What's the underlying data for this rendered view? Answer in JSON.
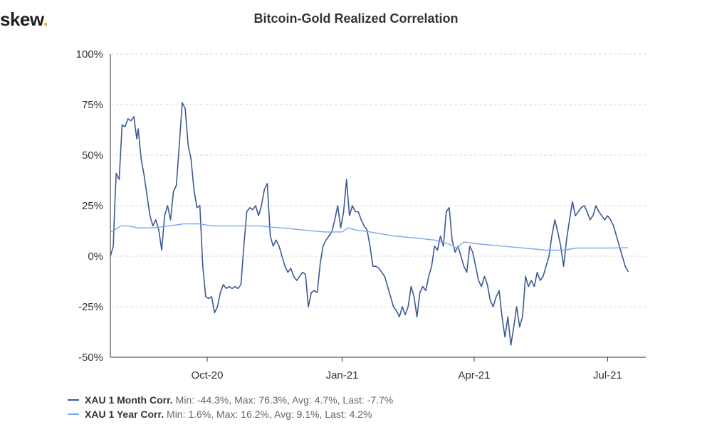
{
  "brand": {
    "name": "skew",
    "dot": "."
  },
  "chart_data": {
    "type": "line",
    "title": "Bitcoin-Gold Realized Correlation",
    "xlabel": "",
    "ylabel": "",
    "ylim": [
      -50,
      100
    ],
    "y_ticks": [
      "100%",
      "75%",
      "50%",
      "25%",
      "0%",
      "-25%",
      "-50%"
    ],
    "y_tick_values": [
      100,
      75,
      50,
      25,
      0,
      -25,
      -50
    ],
    "x_range": [
      "2020-07-27",
      "2021-07-27"
    ],
    "x_ticks": [
      {
        "label": "Oct-20",
        "date": "2020-10-01"
      },
      {
        "label": "Jan-21",
        "date": "2021-01-01"
      },
      {
        "label": "Apr-21",
        "date": "2021-04-01"
      },
      {
        "label": "Jul-21",
        "date": "2021-07-01"
      }
    ],
    "grid": true,
    "legend_position": "bottom-left",
    "series": [
      {
        "name": "XAU 1 Month Corr.",
        "stats": "Min: -44.3%, Max: 76.3%, Avg: 4.7%, Last: -7.7%",
        "color": "#3b5a94",
        "points": [
          [
            "2020-07-27",
            0
          ],
          [
            "2020-07-29",
            5
          ],
          [
            "2020-07-30",
            25
          ],
          [
            "2020-07-31",
            41
          ],
          [
            "2020-08-02",
            38
          ],
          [
            "2020-08-04",
            65
          ],
          [
            "2020-08-06",
            64
          ],
          [
            "2020-08-08",
            68
          ],
          [
            "2020-08-10",
            67
          ],
          [
            "2020-08-12",
            69
          ],
          [
            "2020-08-14",
            58
          ],
          [
            "2020-08-15",
            63
          ],
          [
            "2020-08-17",
            48
          ],
          [
            "2020-08-19",
            40
          ],
          [
            "2020-08-21",
            30
          ],
          [
            "2020-08-23",
            20
          ],
          [
            "2020-08-25",
            15
          ],
          [
            "2020-08-27",
            18
          ],
          [
            "2020-08-29",
            13
          ],
          [
            "2020-08-31",
            3
          ],
          [
            "2020-09-02",
            20
          ],
          [
            "2020-09-04",
            25
          ],
          [
            "2020-09-06",
            18
          ],
          [
            "2020-09-08",
            32
          ],
          [
            "2020-09-10",
            35
          ],
          [
            "2020-09-12",
            55
          ],
          [
            "2020-09-14",
            76
          ],
          [
            "2020-09-16",
            73
          ],
          [
            "2020-09-18",
            55
          ],
          [
            "2020-09-20",
            48
          ],
          [
            "2020-09-22",
            33
          ],
          [
            "2020-09-24",
            24
          ],
          [
            "2020-09-26",
            25
          ],
          [
            "2020-09-28",
            -5
          ],
          [
            "2020-09-30",
            -20
          ],
          [
            "2020-10-02",
            -21
          ],
          [
            "2020-10-04",
            -20
          ],
          [
            "2020-10-06",
            -28
          ],
          [
            "2020-10-08",
            -25
          ],
          [
            "2020-10-10",
            -18
          ],
          [
            "2020-10-12",
            -14
          ],
          [
            "2020-10-14",
            -16
          ],
          [
            "2020-10-16",
            -15
          ],
          [
            "2020-10-18",
            -16
          ],
          [
            "2020-10-20",
            -15
          ],
          [
            "2020-10-22",
            -16
          ],
          [
            "2020-10-24",
            -14
          ],
          [
            "2020-10-26",
            5
          ],
          [
            "2020-10-28",
            22
          ],
          [
            "2020-10-30",
            24
          ],
          [
            "2020-11-01",
            23
          ],
          [
            "2020-11-03",
            25
          ],
          [
            "2020-11-05",
            20
          ],
          [
            "2020-11-07",
            25
          ],
          [
            "2020-11-09",
            33
          ],
          [
            "2020-11-11",
            36
          ],
          [
            "2020-11-13",
            10
          ],
          [
            "2020-11-15",
            5
          ],
          [
            "2020-11-17",
            8
          ],
          [
            "2020-11-19",
            5
          ],
          [
            "2020-11-21",
            0
          ],
          [
            "2020-11-23",
            -5
          ],
          [
            "2020-11-25",
            -8
          ],
          [
            "2020-11-27",
            -6
          ],
          [
            "2020-11-29",
            -10
          ],
          [
            "2020-12-01",
            -12
          ],
          [
            "2020-12-03",
            -10
          ],
          [
            "2020-12-05",
            -8
          ],
          [
            "2020-12-07",
            -9
          ],
          [
            "2020-12-09",
            -25
          ],
          [
            "2020-12-11",
            -18
          ],
          [
            "2020-12-13",
            -17
          ],
          [
            "2020-12-15",
            -18
          ],
          [
            "2020-12-17",
            -4
          ],
          [
            "2020-12-19",
            5
          ],
          [
            "2020-12-21",
            8
          ],
          [
            "2020-12-23",
            10
          ],
          [
            "2020-12-25",
            12
          ],
          [
            "2020-12-27",
            18
          ],
          [
            "2020-12-29",
            25
          ],
          [
            "2020-12-31",
            14
          ],
          [
            "2021-01-02",
            22
          ],
          [
            "2021-01-04",
            38
          ],
          [
            "2021-01-06",
            20
          ],
          [
            "2021-01-08",
            25
          ],
          [
            "2021-01-10",
            22
          ],
          [
            "2021-01-12",
            22
          ],
          [
            "2021-01-14",
            18
          ],
          [
            "2021-01-16",
            15
          ],
          [
            "2021-01-18",
            13
          ],
          [
            "2021-01-20",
            5
          ],
          [
            "2021-01-22",
            -5
          ],
          [
            "2021-01-24",
            -5
          ],
          [
            "2021-01-26",
            -6
          ],
          [
            "2021-01-28",
            -8
          ],
          [
            "2021-01-30",
            -10
          ],
          [
            "2021-02-01",
            -15
          ],
          [
            "2021-02-03",
            -20
          ],
          [
            "2021-02-05",
            -25
          ],
          [
            "2021-02-07",
            -27
          ],
          [
            "2021-02-09",
            -30
          ],
          [
            "2021-02-11",
            -25
          ],
          [
            "2021-02-13",
            -29
          ],
          [
            "2021-02-15",
            -25
          ],
          [
            "2021-02-17",
            -15
          ],
          [
            "2021-02-19",
            -20
          ],
          [
            "2021-02-21",
            -30
          ],
          [
            "2021-02-23",
            -18
          ],
          [
            "2021-02-25",
            -15
          ],
          [
            "2021-02-27",
            -17
          ],
          [
            "2021-03-01",
            -10
          ],
          [
            "2021-03-03",
            -5
          ],
          [
            "2021-03-05",
            5
          ],
          [
            "2021-03-07",
            3
          ],
          [
            "2021-03-09",
            10
          ],
          [
            "2021-03-11",
            5
          ],
          [
            "2021-03-13",
            22
          ],
          [
            "2021-03-15",
            24
          ],
          [
            "2021-03-17",
            8
          ],
          [
            "2021-03-19",
            2
          ],
          [
            "2021-03-21",
            5
          ],
          [
            "2021-03-23",
            0
          ],
          [
            "2021-03-25",
            -5
          ],
          [
            "2021-03-27",
            -8
          ],
          [
            "2021-03-29",
            5
          ],
          [
            "2021-03-31",
            2
          ],
          [
            "2021-04-02",
            -5
          ],
          [
            "2021-04-04",
            -12
          ],
          [
            "2021-04-06",
            -15
          ],
          [
            "2021-04-08",
            -10
          ],
          [
            "2021-04-10",
            -14
          ],
          [
            "2021-04-12",
            -22
          ],
          [
            "2021-04-14",
            -25
          ],
          [
            "2021-04-16",
            -20
          ],
          [
            "2021-04-18",
            -17
          ],
          [
            "2021-04-20",
            -30
          ],
          [
            "2021-04-22",
            -40
          ],
          [
            "2021-04-24",
            -30
          ],
          [
            "2021-04-26",
            -44
          ],
          [
            "2021-04-28",
            -35
          ],
          [
            "2021-04-30",
            -25
          ],
          [
            "2021-05-02",
            -35
          ],
          [
            "2021-05-04",
            -30
          ],
          [
            "2021-05-06",
            -10
          ],
          [
            "2021-05-08",
            -15
          ],
          [
            "2021-05-10",
            -12
          ],
          [
            "2021-05-12",
            -15
          ],
          [
            "2021-05-14",
            -8
          ],
          [
            "2021-05-16",
            -12
          ],
          [
            "2021-05-18",
            -10
          ],
          [
            "2021-05-20",
            -5
          ],
          [
            "2021-05-22",
            0
          ],
          [
            "2021-05-24",
            10
          ],
          [
            "2021-05-26",
            18
          ],
          [
            "2021-05-28",
            12
          ],
          [
            "2021-05-30",
            5
          ],
          [
            "2021-06-01",
            -5
          ],
          [
            "2021-06-03",
            8
          ],
          [
            "2021-06-05",
            18
          ],
          [
            "2021-06-07",
            27
          ],
          [
            "2021-06-09",
            20
          ],
          [
            "2021-06-11",
            22
          ],
          [
            "2021-06-13",
            24
          ],
          [
            "2021-06-15",
            25
          ],
          [
            "2021-06-17",
            22
          ],
          [
            "2021-06-19",
            18
          ],
          [
            "2021-06-21",
            20
          ],
          [
            "2021-06-23",
            25
          ],
          [
            "2021-06-25",
            22
          ],
          [
            "2021-06-27",
            20
          ],
          [
            "2021-06-29",
            18
          ],
          [
            "2021-07-01",
            20
          ],
          [
            "2021-07-03",
            18
          ],
          [
            "2021-07-05",
            15
          ],
          [
            "2021-07-07",
            10
          ],
          [
            "2021-07-09",
            5
          ],
          [
            "2021-07-11",
            0
          ],
          [
            "2021-07-13",
            -5
          ],
          [
            "2021-07-15",
            -7.7
          ]
        ]
      },
      {
        "name": "XAU 1 Year Corr.",
        "stats": "Min: 1.6%, Max: 16.2%, Avg: 9.1%, Last: 4.2%",
        "color": "#7aa7f0",
        "points": [
          [
            "2020-07-27",
            12
          ],
          [
            "2020-07-30",
            13
          ],
          [
            "2020-08-03",
            15
          ],
          [
            "2020-08-08",
            15
          ],
          [
            "2020-08-15",
            14
          ],
          [
            "2020-08-25",
            14
          ],
          [
            "2020-09-05",
            15
          ],
          [
            "2020-09-15",
            16
          ],
          [
            "2020-09-25",
            16
          ],
          [
            "2020-10-05",
            15
          ],
          [
            "2020-10-20",
            15
          ],
          [
            "2020-11-05",
            15
          ],
          [
            "2020-11-20",
            14
          ],
          [
            "2020-12-05",
            13
          ],
          [
            "2020-12-20",
            12
          ],
          [
            "2021-01-01",
            12
          ],
          [
            "2021-01-05",
            14
          ],
          [
            "2021-01-10",
            13
          ],
          [
            "2021-01-20",
            12
          ],
          [
            "2021-02-05",
            10
          ],
          [
            "2021-02-20",
            9
          ],
          [
            "2021-03-05",
            8
          ],
          [
            "2021-03-15",
            6
          ],
          [
            "2021-03-20",
            4
          ],
          [
            "2021-03-25",
            7
          ],
          [
            "2021-04-05",
            6
          ],
          [
            "2021-04-20",
            5
          ],
          [
            "2021-05-05",
            4
          ],
          [
            "2021-05-20",
            3
          ],
          [
            "2021-06-01",
            3
          ],
          [
            "2021-06-10",
            4
          ],
          [
            "2021-06-20",
            4
          ],
          [
            "2021-07-01",
            4
          ],
          [
            "2021-07-15",
            4.2
          ]
        ]
      }
    ]
  }
}
